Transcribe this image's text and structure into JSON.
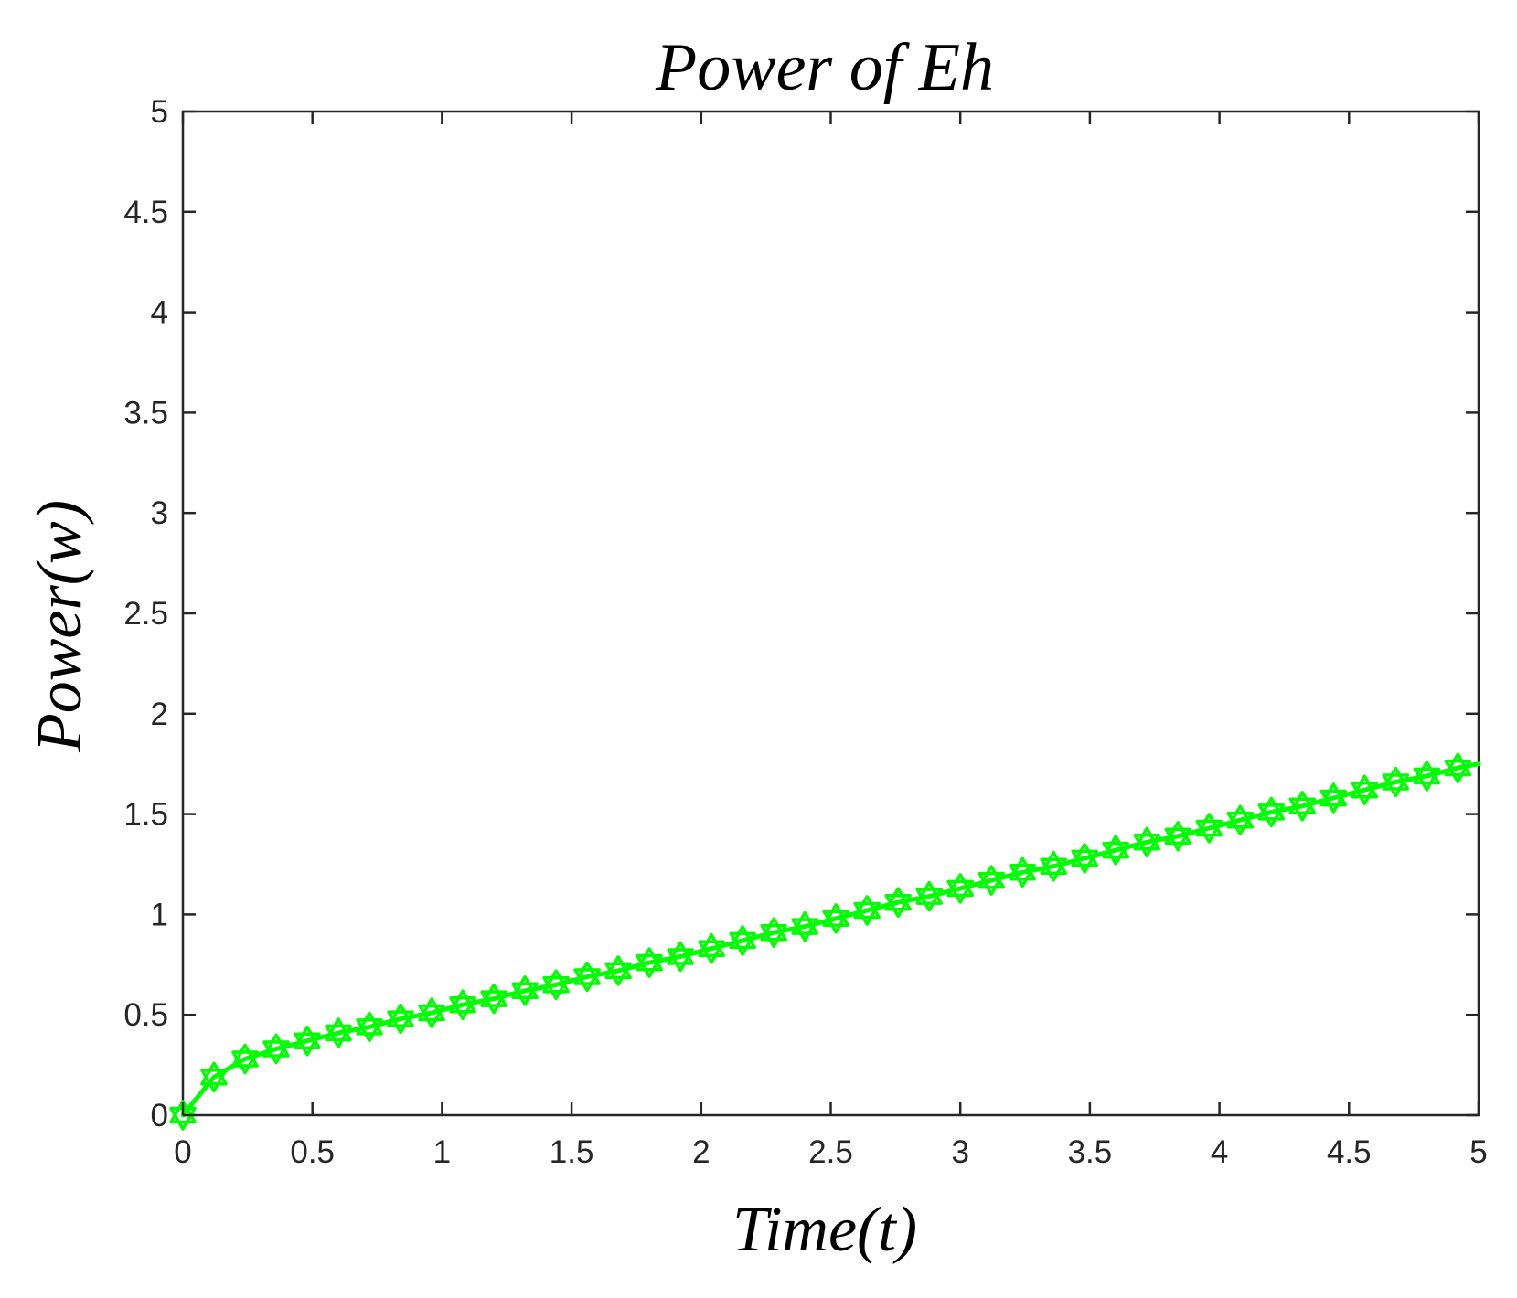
{
  "chart_data": {
    "type": "line",
    "title": "Power of Eh",
    "xlabel": "Time(t)",
    "ylabel": "Power(w)",
    "xlim": [
      0,
      5
    ],
    "ylim": [
      0,
      5
    ],
    "xticks": [
      0,
      0.5,
      1,
      1.5,
      2,
      2.5,
      3,
      3.5,
      4,
      4.5,
      5
    ],
    "xtick_labels": [
      "0",
      "0.5",
      "1",
      "1.5",
      "2",
      "2.5",
      "3",
      "3.5",
      "4",
      "4.5",
      "5"
    ],
    "yticks": [
      0,
      0.5,
      1,
      1.5,
      2,
      2.5,
      3,
      3.5,
      4,
      4.5,
      5
    ],
    "ytick_labels": [
      "0",
      "0.5",
      "1",
      "1.5",
      "2",
      "2.5",
      "3",
      "3.5",
      "4",
      "4.5",
      "5"
    ],
    "grid": false,
    "legend": "none",
    "series": [
      {
        "color": "#00ff00",
        "marker": "hexagram",
        "x": [
          0,
          0.12,
          0.24,
          0.36,
          0.48,
          0.6,
          0.72,
          0.84,
          0.96,
          1.08,
          1.2,
          1.32,
          1.44,
          1.56,
          1.68,
          1.8,
          1.92,
          2.04,
          2.16,
          2.28,
          2.4,
          2.52,
          2.64,
          2.76,
          2.88,
          3.0,
          3.12,
          3.24,
          3.36,
          3.48,
          3.6,
          3.72,
          3.84,
          3.96,
          4.08,
          4.2,
          4.32,
          4.44,
          4.56,
          4.68,
          4.8,
          4.92
        ],
        "y": [
          0,
          0.19,
          0.28,
          0.33,
          0.37,
          0.41,
          0.44,
          0.48,
          0.51,
          0.55,
          0.58,
          0.62,
          0.65,
          0.69,
          0.72,
          0.76,
          0.79,
          0.83,
          0.87,
          0.91,
          0.94,
          0.98,
          1.02,
          1.06,
          1.09,
          1.13,
          1.17,
          1.21,
          1.24,
          1.28,
          1.32,
          1.36,
          1.39,
          1.43,
          1.47,
          1.51,
          1.54,
          1.58,
          1.62,
          1.66,
          1.69,
          1.73
        ],
        "line_end": [
          5,
          1.75
        ]
      }
    ]
  }
}
